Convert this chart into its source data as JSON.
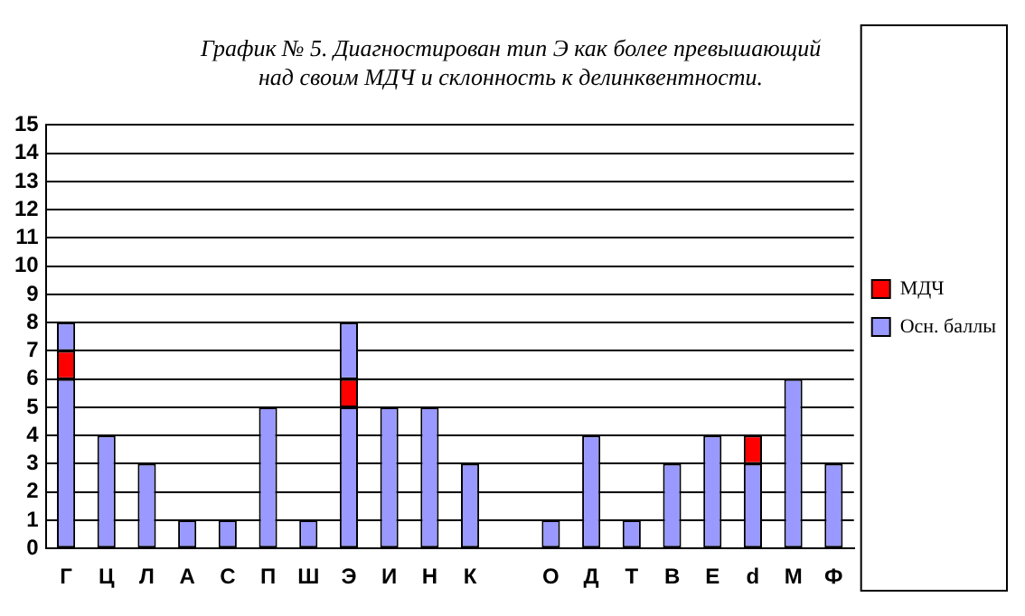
{
  "chart_data": {
    "type": "bar",
    "title": "График № 5. Диагностирован тип Э как более превышающий\nнад своим МДЧ и склонность к делинквентности.",
    "categories": [
      "Г",
      "Ц",
      "Л",
      "А",
      "С",
      "П",
      "Ш",
      "Э",
      "И",
      "Н",
      "К",
      null,
      "О",
      "Д",
      "Т",
      "В",
      "Е",
      "d",
      "М",
      "Ф"
    ],
    "stacked": true,
    "series": [
      {
        "name": "Осн. баллы",
        "color": "#9999ff",
        "values": [
          6,
          4,
          3,
          1,
          1,
          5,
          1,
          5,
          5,
          5,
          3,
          null,
          1,
          4,
          1,
          3,
          4,
          3,
          6,
          3
        ]
      },
      {
        "name": "МДЧ",
        "color": "#ff0000",
        "values": [
          1,
          null,
          null,
          null,
          null,
          null,
          null,
          1,
          null,
          null,
          null,
          null,
          null,
          null,
          null,
          null,
          null,
          1,
          null,
          null
        ]
      },
      {
        "color": "#9999ff",
        "values": [
          1,
          null,
          null,
          null,
          null,
          null,
          null,
          2,
          null,
          null,
          null,
          null,
          null,
          null,
          null,
          null,
          null,
          null,
          null,
          null
        ]
      }
    ],
    "ylim": [
      0,
      15
    ],
    "yticks": [
      0,
      1,
      2,
      3,
      4,
      5,
      6,
      7,
      8,
      9,
      10,
      11,
      12,
      13,
      14,
      15
    ],
    "grid": "y",
    "legend": "right"
  }
}
